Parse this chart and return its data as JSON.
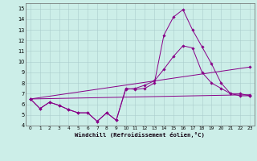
{
  "xlabel": "Windchill (Refroidissement éolien,°C)",
  "bg_color": "#cceee8",
  "line_color": "#880088",
  "grid_color": "#aacccc",
  "xlim": [
    -0.5,
    23.5
  ],
  "ylim": [
    4,
    15.5
  ],
  "yticks": [
    4,
    5,
    6,
    7,
    8,
    9,
    10,
    11,
    12,
    13,
    14,
    15
  ],
  "xticks": [
    0,
    1,
    2,
    3,
    4,
    5,
    6,
    7,
    8,
    9,
    10,
    11,
    12,
    13,
    14,
    15,
    16,
    17,
    18,
    19,
    20,
    21,
    22,
    23
  ],
  "series": [
    {
      "x": [
        0,
        1,
        2,
        3,
        4,
        5,
        6,
        7,
        8,
        9,
        10,
        11,
        12,
        13,
        14,
        15,
        16,
        17,
        18,
        19,
        20,
        21,
        22,
        23
      ],
      "y": [
        6.5,
        5.6,
        6.2,
        5.9,
        5.5,
        5.2,
        5.2,
        4.4,
        5.2,
        4.5,
        7.5,
        7.4,
        7.5,
        8.0,
        12.5,
        14.2,
        14.9,
        13.0,
        11.4,
        9.8,
        8.0,
        7.0,
        6.8,
        6.8
      ]
    },
    {
      "x": [
        0,
        1,
        2,
        3,
        4,
        5,
        6,
        7,
        8,
        9,
        10,
        11,
        12,
        13,
        14,
        15,
        16,
        17,
        18,
        19,
        20,
        21,
        22,
        23
      ],
      "y": [
        6.5,
        5.6,
        6.2,
        5.9,
        5.5,
        5.2,
        5.2,
        4.4,
        5.2,
        4.5,
        7.4,
        7.5,
        7.8,
        8.2,
        9.3,
        10.5,
        11.5,
        11.3,
        9.0,
        8.0,
        7.5,
        7.0,
        7.0,
        6.8
      ]
    },
    {
      "x": [
        0,
        23
      ],
      "y": [
        6.5,
        9.5
      ]
    },
    {
      "x": [
        0,
        23
      ],
      "y": [
        6.5,
        6.9
      ]
    }
  ]
}
